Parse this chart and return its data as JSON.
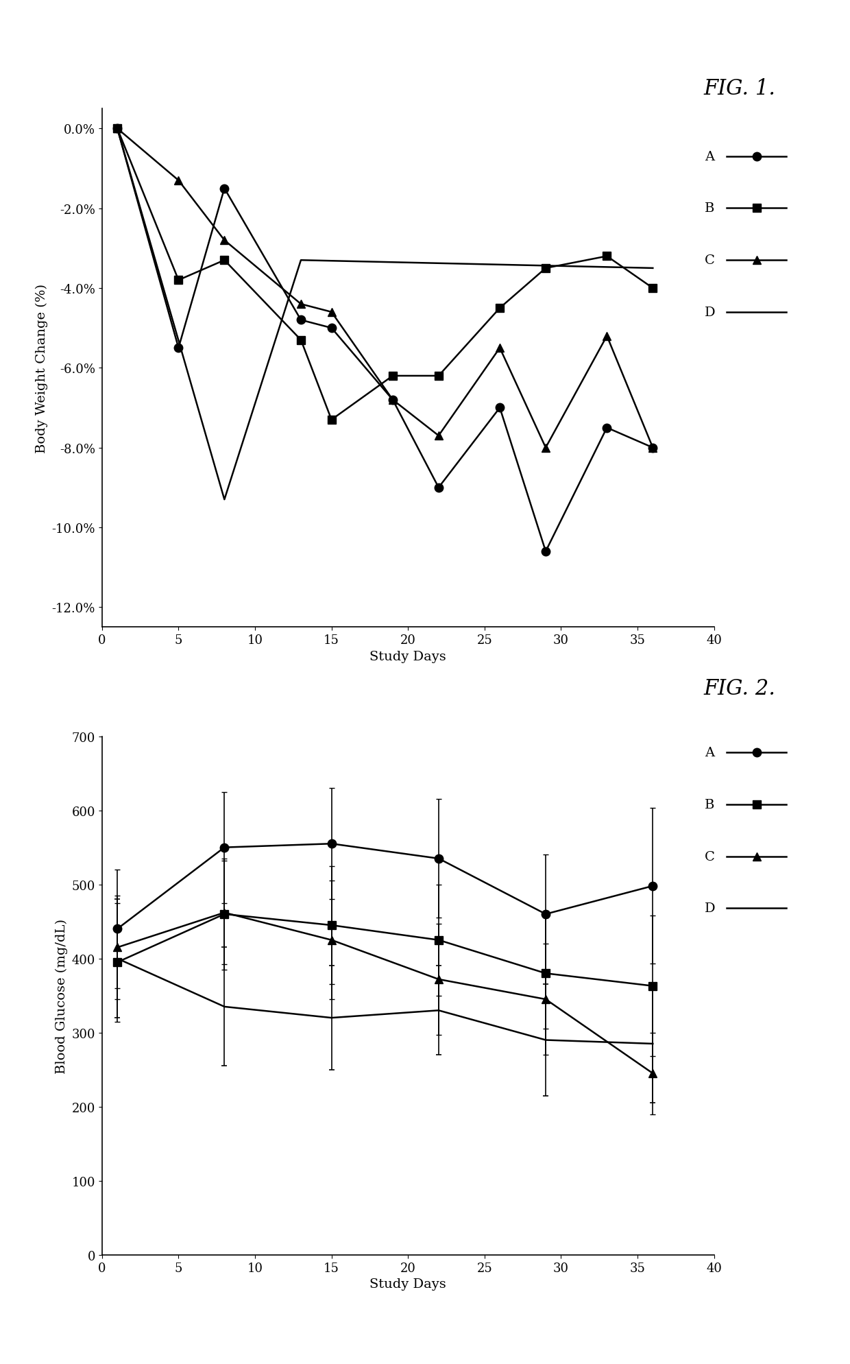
{
  "fig1": {
    "title": "FIG. 1.",
    "xlabel": "Study Days",
    "ylabel": "Body Weight Change (%)",
    "xlim": [
      0,
      40
    ],
    "ylim": [
      -0.125,
      0.005
    ],
    "yticks": [
      0.0,
      -0.02,
      -0.04,
      -0.06,
      -0.08,
      -0.1,
      -0.12
    ],
    "xticks": [
      0,
      5,
      10,
      15,
      20,
      25,
      30,
      35,
      40
    ],
    "series": {
      "A": {
        "x": [
          1,
          5,
          8,
          13,
          15,
          19,
          22,
          26,
          29,
          33,
          36
        ],
        "y": [
          0.0,
          -0.055,
          -0.015,
          -0.048,
          -0.05,
          -0.068,
          -0.09,
          -0.07,
          -0.106,
          -0.075,
          -0.08
        ],
        "marker": "o",
        "label": "A"
      },
      "B": {
        "x": [
          1,
          5,
          8,
          13,
          15,
          19,
          22,
          26,
          29,
          33,
          36
        ],
        "y": [
          0.0,
          -0.038,
          -0.033,
          -0.053,
          -0.073,
          -0.062,
          -0.062,
          -0.045,
          -0.035,
          -0.032,
          -0.04
        ],
        "marker": "s",
        "label": "B"
      },
      "C": {
        "x": [
          1,
          5,
          8,
          13,
          15,
          19,
          22,
          26,
          29,
          33,
          36
        ],
        "y": [
          0.0,
          -0.013,
          -0.028,
          -0.044,
          -0.046,
          -0.068,
          -0.077,
          -0.055,
          -0.08,
          -0.052,
          -0.08
        ],
        "marker": "^",
        "label": "C"
      },
      "D": {
        "x": [
          1,
          8,
          13,
          36
        ],
        "y": [
          0.0,
          -0.093,
          -0.033,
          -0.035
        ],
        "marker": null,
        "label": "D"
      }
    }
  },
  "fig2": {
    "title": "FIG. 2.",
    "xlabel": "Study Days",
    "ylabel": "Blood Glucose (mg/dL)",
    "xlim": [
      0,
      40
    ],
    "ylim": [
      0,
      700
    ],
    "yticks": [
      0,
      100,
      200,
      300,
      400,
      500,
      600,
      700
    ],
    "xticks": [
      0,
      5,
      10,
      15,
      20,
      25,
      30,
      35,
      40
    ],
    "series": {
      "A": {
        "x": [
          1,
          8,
          15,
          22,
          29,
          36
        ],
        "y": [
          440,
          550,
          555,
          535,
          460,
          498
        ],
        "yerr_lo": [
          80,
          75,
          75,
          80,
          80,
          105
        ],
        "yerr_hi": [
          80,
          75,
          75,
          80,
          80,
          105
        ],
        "marker": "o",
        "label": "A"
      },
      "B": {
        "x": [
          1,
          8,
          15,
          22,
          29,
          36
        ],
        "y": [
          395,
          460,
          445,
          425,
          380,
          363
        ],
        "yerr_lo": [
          80,
          75,
          80,
          75,
          75,
          95
        ],
        "yerr_hi": [
          80,
          75,
          80,
          75,
          75,
          95
        ],
        "marker": "s",
        "label": "B"
      },
      "C": {
        "x": [
          1,
          8,
          15,
          22,
          29,
          36
        ],
        "y": [
          415,
          462,
          425,
          372,
          345,
          245
        ],
        "yerr_lo": [
          70,
          70,
          80,
          75,
          75,
          55
        ],
        "yerr_hi": [
          70,
          70,
          80,
          75,
          75,
          55
        ],
        "marker": "^",
        "label": "C"
      },
      "D": {
        "x": [
          1,
          8,
          15,
          22,
          29,
          36
        ],
        "y": [
          400,
          335,
          320,
          330,
          290,
          285
        ],
        "yerr_lo": [
          80,
          80,
          70,
          60,
          75,
          80
        ],
        "yerr_hi": [
          80,
          80,
          70,
          60,
          75,
          80
        ],
        "marker": null,
        "label": "D"
      }
    }
  },
  "line_color": "#000000",
  "marker_size": 9,
  "linewidth": 1.8,
  "font_family": "serif",
  "title_fontstyle": "italic",
  "title_fontsize": 22,
  "axis_fontsize": 14,
  "tick_fontsize": 13,
  "legend_fontsize": 14
}
